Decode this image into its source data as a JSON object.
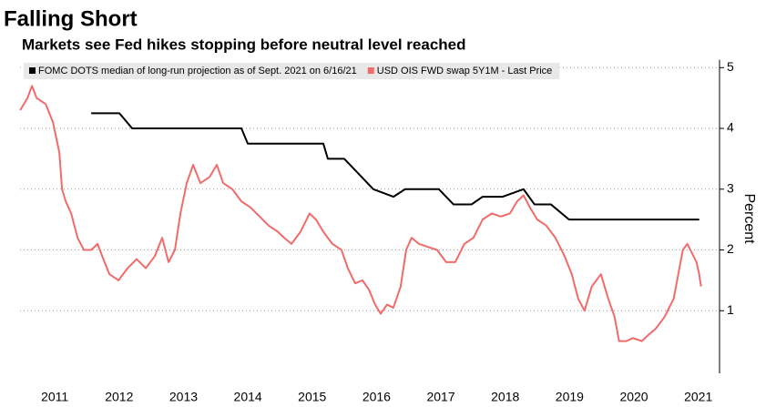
{
  "chart_data": {
    "type": "line",
    "title": "Falling Short",
    "subtitle": "Markets see Fed hikes stopping before neutral level reached",
    "y_label": "Percent",
    "xlim": [
      2010.96,
      2021.83
    ],
    "ylim": [
      0,
      5.1
    ],
    "xticks": [
      {
        "value": 2011.5,
        "label": "2011"
      },
      {
        "value": 2012.5,
        "label": "2012"
      },
      {
        "value": 2013.5,
        "label": "2013"
      },
      {
        "value": 2014.5,
        "label": "2014"
      },
      {
        "value": 2015.5,
        "label": "2015"
      },
      {
        "value": 2016.5,
        "label": "2016"
      },
      {
        "value": 2017.5,
        "label": "2017"
      },
      {
        "value": 2018.5,
        "label": "2018"
      },
      {
        "value": 2019.5,
        "label": "2019"
      },
      {
        "value": 2020.5,
        "label": "2020"
      },
      {
        "value": 2021.5,
        "label": "2021"
      }
    ],
    "yticks": [
      1,
      2,
      3,
      4,
      5
    ],
    "grid": true,
    "legend": "top-left",
    "series": [
      {
        "name": "FOMC DOTS median of long-run projection as of Sept. 2021 on 6/16/21",
        "color": "#000000",
        "x": [
          2012.066,
          2012.504,
          2012.702,
          2014.4,
          2014.499,
          2015.673,
          2015.743,
          2015.998,
          2016.45,
          2016.762,
          2016.945,
          2017.469,
          2017.695,
          2017.978,
          2018.148,
          2018.459,
          2018.784,
          2018.954,
          2019.209,
          2019.492,
          2021.514
        ],
        "values": [
          4.25,
          4.25,
          4.0,
          4.0,
          3.75,
          3.75,
          3.5,
          3.5,
          3.0,
          2.875,
          3.0,
          3.0,
          2.75,
          2.75,
          2.875,
          2.875,
          3.0,
          2.75,
          2.75,
          2.5,
          2.5
        ]
      },
      {
        "name": "USD OIS FWD swap 5Y1M - Last Price",
        "color": "#f26b6b",
        "x": [
          2010.962,
          2011.076,
          2011.146,
          2011.217,
          2011.359,
          2011.472,
          2011.571,
          2011.613,
          2011.67,
          2011.755,
          2011.854,
          2011.953,
          2012.066,
          2012.165,
          2012.236,
          2012.349,
          2012.49,
          2012.632,
          2012.773,
          2012.914,
          2013.056,
          2013.169,
          2013.268,
          2013.367,
          2013.452,
          2013.551,
          2013.65,
          2013.763,
          2013.905,
          2014.018,
          2014.117,
          2014.258,
          2014.4,
          2014.541,
          2014.683,
          2014.824,
          2014.965,
          2015.064,
          2015.178,
          2015.319,
          2015.46,
          2015.559,
          2015.673,
          2015.814,
          2015.955,
          2016.054,
          2016.168,
          2016.281,
          2016.38,
          2016.479,
          2016.564,
          2016.663,
          2016.762,
          2016.875,
          2016.96,
          2017.045,
          2017.158,
          2017.299,
          2017.441,
          2017.582,
          2017.724,
          2017.865,
          2018.006,
          2018.148,
          2018.289,
          2018.431,
          2018.572,
          2018.685,
          2018.784,
          2018.883,
          2018.997,
          2019.138,
          2019.279,
          2019.421,
          2019.534,
          2019.633,
          2019.732,
          2019.845,
          2019.987,
          2020.1,
          2020.199,
          2020.269,
          2020.383,
          2020.482,
          2020.623,
          2020.722,
          2020.835,
          2020.977,
          2021.118,
          2021.189,
          2021.26,
          2021.33,
          2021.401,
          2021.472,
          2021.514,
          2021.542
        ],
        "values": [
          4.3,
          4.5,
          4.7,
          4.5,
          4.4,
          4.1,
          3.6,
          3.0,
          2.8,
          2.6,
          2.2,
          2.0,
          2.0,
          2.1,
          1.9,
          1.6,
          1.5,
          1.7,
          1.85,
          1.7,
          1.9,
          2.2,
          1.8,
          2.0,
          2.6,
          3.1,
          3.4,
          3.1,
          3.2,
          3.4,
          3.1,
          3.0,
          2.8,
          2.7,
          2.55,
          2.4,
          2.3,
          2.2,
          2.1,
          2.3,
          2.6,
          2.5,
          2.3,
          2.1,
          2.0,
          1.7,
          1.45,
          1.5,
          1.35,
          1.1,
          0.95,
          1.1,
          1.05,
          1.4,
          2.0,
          2.2,
          2.1,
          2.05,
          2.0,
          1.8,
          1.8,
          2.1,
          2.2,
          2.5,
          2.6,
          2.55,
          2.6,
          2.8,
          2.9,
          2.7,
          2.5,
          2.4,
          2.2,
          1.9,
          1.6,
          1.2,
          1.0,
          1.4,
          1.6,
          1.2,
          0.9,
          0.5,
          0.5,
          0.55,
          0.5,
          0.6,
          0.7,
          0.9,
          1.2,
          1.6,
          2.0,
          2.1,
          1.95,
          1.8,
          1.6,
          1.4
        ]
      }
    ]
  }
}
